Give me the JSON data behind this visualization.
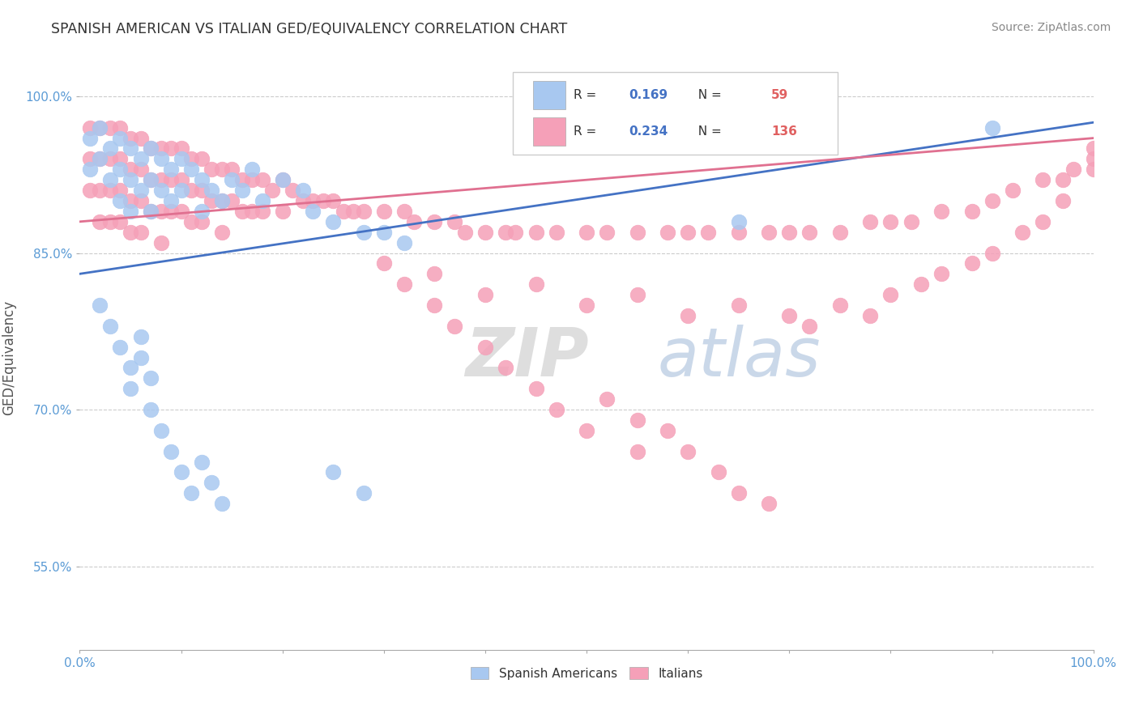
{
  "title": "SPANISH AMERICAN VS ITALIAN GED/EQUIVALENCY CORRELATION CHART",
  "source": "Source: ZipAtlas.com",
  "ylabel": "GED/Equivalency",
  "ytick_vals": [
    0.55,
    0.7,
    0.85,
    1.0
  ],
  "ytick_labels": [
    "55.0%",
    "70.0%",
    "85.0%",
    "100.0%"
  ],
  "xtick_vals": [
    0.0,
    0.1,
    0.2,
    0.3,
    0.4,
    0.5,
    0.6,
    0.7,
    0.8,
    0.9,
    1.0
  ],
  "xtick_labels": [
    "0.0%",
    "",
    "",
    "",
    "",
    "",
    "",
    "",
    "",
    "",
    "100.0%"
  ],
  "xlim": [
    0.0,
    1.0
  ],
  "ylim": [
    0.47,
    1.03
  ],
  "legend_r_blue": "0.169",
  "legend_n_blue": "59",
  "legend_r_pink": "0.234",
  "legend_n_pink": "136",
  "blue_color": "#A8C8F0",
  "pink_color": "#F5A0B8",
  "line_blue_color": "#4472C4",
  "line_pink_color": "#E07090",
  "blue_line_start_y": 0.83,
  "blue_line_end_y": 0.975,
  "pink_line_start_y": 0.88,
  "pink_line_end_y": 0.96,
  "watermark_text": "ZIP atlas",
  "watermark_color": "#C8D8EC",
  "title_color": "#333333",
  "source_color": "#888888",
  "axis_color": "#5B9BD5",
  "ylabel_color": "#555555",
  "grid_color": "#CCCCCC",
  "legend_text_color": "#333333",
  "legend_r_color": "#4472C4",
  "legend_n_color": "#E06060",
  "blue_x": [
    0.01,
    0.01,
    0.02,
    0.02,
    0.03,
    0.03,
    0.04,
    0.04,
    0.04,
    0.05,
    0.05,
    0.05,
    0.06,
    0.06,
    0.07,
    0.07,
    0.07,
    0.08,
    0.08,
    0.09,
    0.09,
    0.1,
    0.1,
    0.11,
    0.12,
    0.12,
    0.13,
    0.14,
    0.15,
    0.16,
    0.17,
    0.18,
    0.2,
    0.22,
    0.23,
    0.25,
    0.28,
    0.3,
    0.32,
    0.02,
    0.03,
    0.04,
    0.05,
    0.05,
    0.06,
    0.06,
    0.07,
    0.07,
    0.08,
    0.09,
    0.1,
    0.11,
    0.12,
    0.13,
    0.14,
    0.25,
    0.28,
    0.65,
    0.9
  ],
  "blue_y": [
    0.96,
    0.93,
    0.97,
    0.94,
    0.95,
    0.92,
    0.96,
    0.93,
    0.9,
    0.95,
    0.92,
    0.89,
    0.94,
    0.91,
    0.95,
    0.92,
    0.89,
    0.94,
    0.91,
    0.93,
    0.9,
    0.94,
    0.91,
    0.93,
    0.92,
    0.89,
    0.91,
    0.9,
    0.92,
    0.91,
    0.93,
    0.9,
    0.92,
    0.91,
    0.89,
    0.88,
    0.87,
    0.87,
    0.86,
    0.8,
    0.78,
    0.76,
    0.74,
    0.72,
    0.77,
    0.75,
    0.73,
    0.7,
    0.68,
    0.66,
    0.64,
    0.62,
    0.65,
    0.63,
    0.61,
    0.64,
    0.62,
    0.88,
    0.97
  ],
  "pink_x": [
    0.01,
    0.01,
    0.01,
    0.02,
    0.02,
    0.02,
    0.02,
    0.03,
    0.03,
    0.03,
    0.03,
    0.04,
    0.04,
    0.04,
    0.04,
    0.05,
    0.05,
    0.05,
    0.05,
    0.06,
    0.06,
    0.06,
    0.06,
    0.07,
    0.07,
    0.07,
    0.08,
    0.08,
    0.08,
    0.08,
    0.09,
    0.09,
    0.09,
    0.1,
    0.1,
    0.1,
    0.11,
    0.11,
    0.11,
    0.12,
    0.12,
    0.12,
    0.13,
    0.13,
    0.14,
    0.14,
    0.14,
    0.15,
    0.15,
    0.16,
    0.16,
    0.17,
    0.17,
    0.18,
    0.18,
    0.19,
    0.2,
    0.2,
    0.21,
    0.22,
    0.23,
    0.24,
    0.25,
    0.26,
    0.27,
    0.28,
    0.3,
    0.32,
    0.33,
    0.35,
    0.37,
    0.38,
    0.4,
    0.42,
    0.43,
    0.45,
    0.47,
    0.5,
    0.52,
    0.55,
    0.58,
    0.6,
    0.62,
    0.65,
    0.68,
    0.7,
    0.72,
    0.75,
    0.78,
    0.8,
    0.82,
    0.85,
    0.88,
    0.9,
    0.92,
    0.95,
    0.97,
    0.98,
    1.0,
    1.0,
    0.3,
    0.32,
    0.35,
    0.37,
    0.4,
    0.42,
    0.45,
    0.47,
    0.5,
    0.55,
    0.35,
    0.4,
    0.45,
    0.5,
    0.55,
    0.6,
    0.65,
    0.7,
    0.72,
    0.75,
    0.78,
    0.8,
    0.83,
    0.85,
    0.88,
    0.9,
    0.93,
    0.95,
    0.97,
    1.0,
    0.52,
    0.55,
    0.58,
    0.6,
    0.63,
    0.65,
    0.68
  ],
  "pink_y": [
    0.97,
    0.94,
    0.91,
    0.97,
    0.94,
    0.91,
    0.88,
    0.97,
    0.94,
    0.91,
    0.88,
    0.97,
    0.94,
    0.91,
    0.88,
    0.96,
    0.93,
    0.9,
    0.87,
    0.96,
    0.93,
    0.9,
    0.87,
    0.95,
    0.92,
    0.89,
    0.95,
    0.92,
    0.89,
    0.86,
    0.95,
    0.92,
    0.89,
    0.95,
    0.92,
    0.89,
    0.94,
    0.91,
    0.88,
    0.94,
    0.91,
    0.88,
    0.93,
    0.9,
    0.93,
    0.9,
    0.87,
    0.93,
    0.9,
    0.92,
    0.89,
    0.92,
    0.89,
    0.92,
    0.89,
    0.91,
    0.92,
    0.89,
    0.91,
    0.9,
    0.9,
    0.9,
    0.9,
    0.89,
    0.89,
    0.89,
    0.89,
    0.89,
    0.88,
    0.88,
    0.88,
    0.87,
    0.87,
    0.87,
    0.87,
    0.87,
    0.87,
    0.87,
    0.87,
    0.87,
    0.87,
    0.87,
    0.87,
    0.87,
    0.87,
    0.87,
    0.87,
    0.87,
    0.88,
    0.88,
    0.88,
    0.89,
    0.89,
    0.9,
    0.91,
    0.92,
    0.92,
    0.93,
    0.94,
    0.95,
    0.84,
    0.82,
    0.8,
    0.78,
    0.76,
    0.74,
    0.72,
    0.7,
    0.68,
    0.66,
    0.83,
    0.81,
    0.82,
    0.8,
    0.81,
    0.79,
    0.8,
    0.79,
    0.78,
    0.8,
    0.79,
    0.81,
    0.82,
    0.83,
    0.84,
    0.85,
    0.87,
    0.88,
    0.9,
    0.93,
    0.71,
    0.69,
    0.68,
    0.66,
    0.64,
    0.62,
    0.61
  ]
}
